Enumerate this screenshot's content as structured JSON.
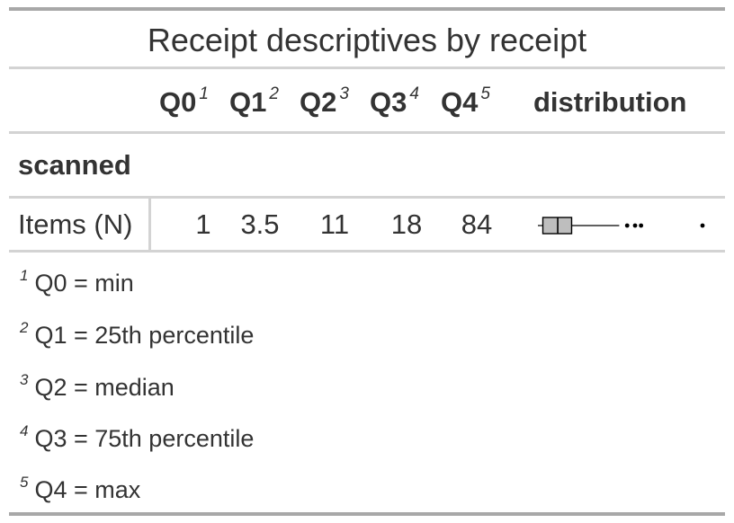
{
  "title": "Receipt descriptives by receipt",
  "columns": [
    {
      "label": "Q0",
      "mark": "1"
    },
    {
      "label": "Q1",
      "mark": "2"
    },
    {
      "label": "Q2",
      "mark": "3"
    },
    {
      "label": "Q3",
      "mark": "4"
    },
    {
      "label": "Q4",
      "mark": "5"
    },
    {
      "label": "distribution"
    }
  ],
  "group": "scanned",
  "row": {
    "label": "Items (N)",
    "q0": "1",
    "q1": "3.5",
    "q2": "11",
    "q3": "18",
    "q4": "84"
  },
  "distribution": {
    "min": 1,
    "q1": 3.5,
    "median": 11,
    "q3": 18,
    "max": 84,
    "outliers": [
      46,
      50,
      53,
      84
    ],
    "whisker_high": 42,
    "box_fill": "#bebebe",
    "stroke": "#000000"
  },
  "footnotes": [
    {
      "mark": "1",
      "text": "Q0 = min"
    },
    {
      "mark": "2",
      "text": "Q1 = 25th percentile"
    },
    {
      "mark": "3",
      "text": "Q2 = median"
    },
    {
      "mark": "4",
      "text": "Q3 = 75th percentile"
    },
    {
      "mark": "5",
      "text": "Q4 = max"
    }
  ]
}
